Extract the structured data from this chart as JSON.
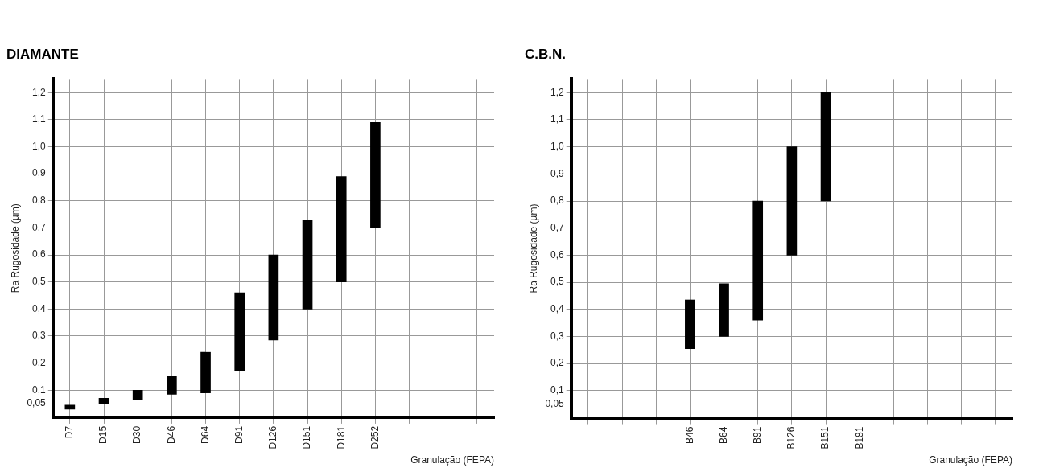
{
  "chart_data": [
    {
      "type": "bar",
      "title": "DIAMANTE",
      "xlabel": "Granulação (FEPA)",
      "ylabel": "Ra Rugosidade (µm)",
      "categories": [
        "D7",
        "D15",
        "D30",
        "D46",
        "D64",
        "D91",
        "D126",
        "D151",
        "D181",
        "D252",
        null,
        null,
        null
      ],
      "base": [
        0.03,
        0.05,
        0.065,
        0.085,
        0.09,
        0.17,
        0.285,
        0.4,
        0.5,
        0.7,
        null,
        null,
        null
      ],
      "values": [
        0.015,
        0.02,
        0.035,
        0.065,
        0.15,
        0.29,
        0.315,
        0.33,
        0.39,
        0.39,
        null,
        null,
        null
      ],
      "color": "#000000",
      "ylim": [
        0,
        1.25
      ],
      "yticks": [
        {
          "value": 0.05,
          "label": "0,05"
        },
        {
          "value": 0.1,
          "label": "0,1"
        },
        {
          "value": 0.2,
          "label": "0,2"
        },
        {
          "value": 0.3,
          "label": "0,3"
        },
        {
          "value": 0.4,
          "label": "0,4"
        },
        {
          "value": 0.5,
          "label": "0,5"
        },
        {
          "value": 0.6,
          "label": "0,6"
        },
        {
          "value": 0.7,
          "label": "0,7"
        },
        {
          "value": 0.8,
          "label": "0,8"
        },
        {
          "value": 0.9,
          "label": "0,9"
        },
        {
          "value": 1.0,
          "label": "1,0"
        },
        {
          "value": 1.1,
          "label": "1,1"
        },
        {
          "value": 1.2,
          "label": "1,2"
        }
      ],
      "grid": true
    },
    {
      "type": "bar",
      "title": "C.B.N.",
      "xlabel": "Granulação (FEPA)",
      "ylabel": "Ra Rugosidade (µm)",
      "categories": [
        null,
        null,
        null,
        "B46",
        "B64",
        "B91",
        "B126",
        "B151",
        "B181",
        null,
        null,
        null,
        null
      ],
      "base": [
        null,
        null,
        null,
        0.255,
        0.3,
        0.36,
        0.6,
        0.8,
        null,
        null,
        null,
        null,
        null
      ],
      "values": [
        null,
        null,
        null,
        0.18,
        0.195,
        0.44,
        0.4,
        0.4,
        null,
        null,
        null,
        null,
        null
      ],
      "color": "#000000",
      "ylim": [
        0,
        1.25
      ],
      "yticks": [
        {
          "value": 0.05,
          "label": "0,05"
        },
        {
          "value": 0.1,
          "label": "0,1"
        },
        {
          "value": 0.2,
          "label": "0,2"
        },
        {
          "value": 0.3,
          "label": "0,3"
        },
        {
          "value": 0.4,
          "label": "0,4"
        },
        {
          "value": 0.5,
          "label": "0,5"
        },
        {
          "value": 0.6,
          "label": "0,6"
        },
        {
          "value": 0.7,
          "label": "0,7"
        },
        {
          "value": 0.8,
          "label": "0,8"
        },
        {
          "value": 0.9,
          "label": "0,9"
        },
        {
          "value": 1.0,
          "label": "1,0"
        },
        {
          "value": 1.1,
          "label": "1,1"
        },
        {
          "value": 1.2,
          "label": "1,2"
        }
      ],
      "grid": true
    }
  ]
}
